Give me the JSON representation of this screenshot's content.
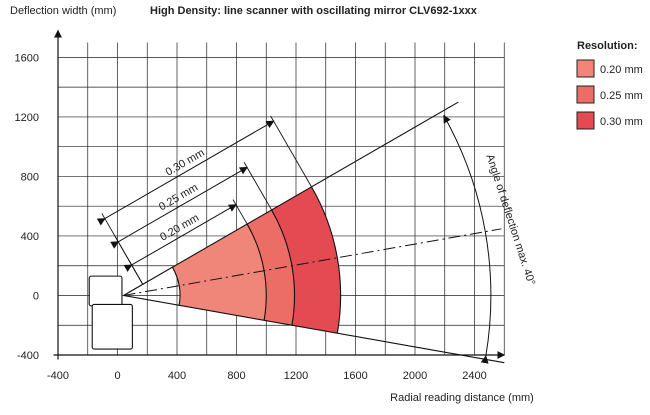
{
  "chart_data": {
    "type": "area",
    "title": "High Density: line scanner with oscillating mirror CLV692-1xxx",
    "ylabel": "Deflection width (mm)",
    "xlabel": "Radial reading distance (mm)",
    "xlim": [
      -400,
      2600
    ],
    "ylim": [
      -400,
      1700
    ],
    "xticks": [
      -400,
      0,
      400,
      800,
      1200,
      1600,
      2000,
      2400
    ],
    "yticks": [
      -400,
      0,
      400,
      800,
      1200,
      1600
    ],
    "grid": true,
    "legend": {
      "title": "Resolution:",
      "position": "top-right",
      "items": [
        {
          "label": "0.20 mm",
          "color": "#f0867a"
        },
        {
          "label": "0.25 mm",
          "color": "#ec6c66"
        },
        {
          "label": "0.30 mm",
          "color": "#e44a52"
        }
      ]
    },
    "scanner_origin": [
      40,
      0
    ],
    "angle_deg": [
      -10,
      30
    ],
    "axis_angle_deg": 10,
    "series": [
      {
        "name": "0.20 mm",
        "start": 380,
        "end": 960,
        "color": "#f0867a"
      },
      {
        "name": "0.25 mm",
        "start": 380,
        "end": 1150,
        "color": "#ec6c66"
      },
      {
        "name": "0.30 mm",
        "start": 380,
        "end": 1460,
        "color": "#e44a52"
      }
    ],
    "annotations": {
      "dimension_labels": [
        "0.30 mm",
        "0.25 mm",
        "0.20 mm"
      ],
      "angle_label": "Angle of deflection max. 40°"
    }
  }
}
